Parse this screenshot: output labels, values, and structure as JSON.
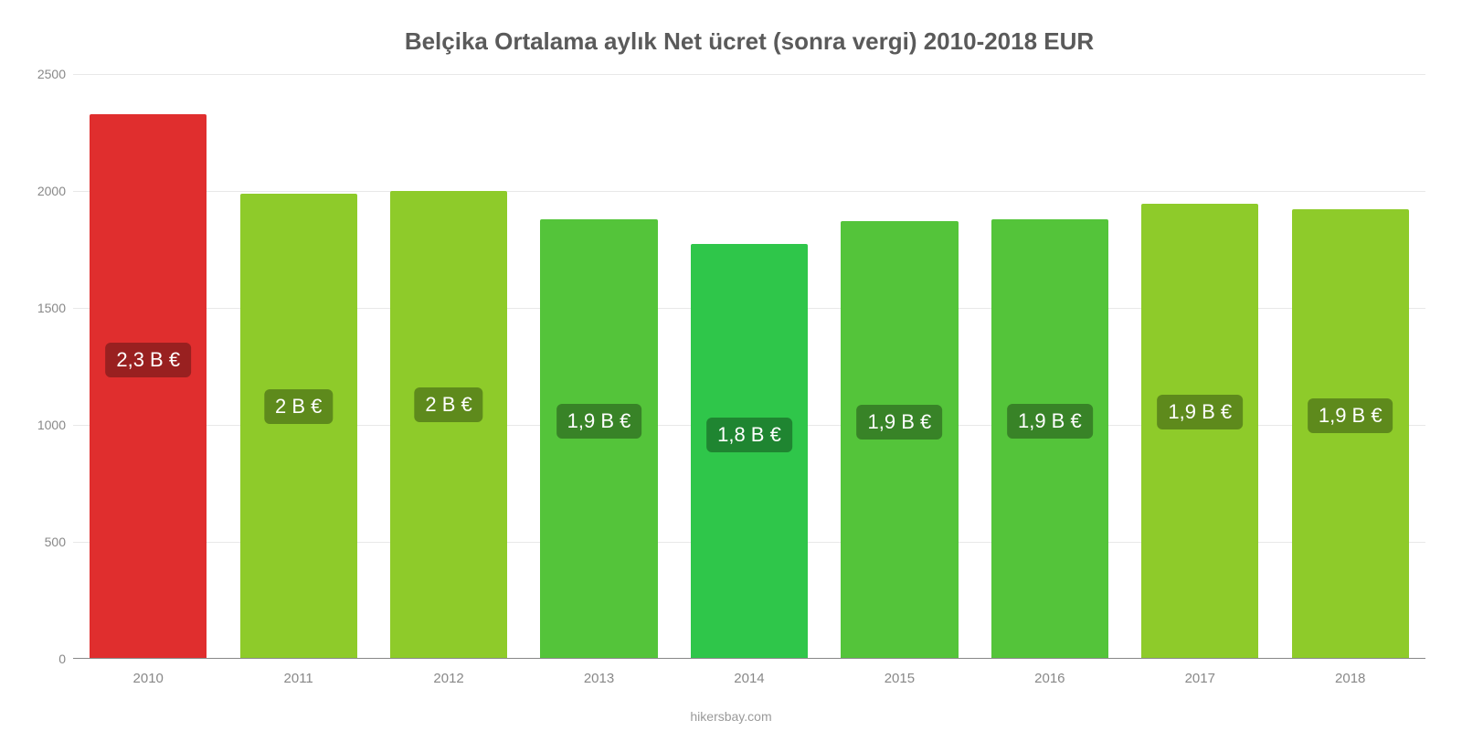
{
  "chart": {
    "type": "bar",
    "title": "Belçika Ortalama aylık Net ücret (sonra vergi) 2010-2018 EUR",
    "title_fontsize": 26,
    "title_color": "#5a5a5a",
    "background_color": "#ffffff",
    "grid_color": "#e8e8e8",
    "axis_text_color": "#888888",
    "axis_fontsize": 14,
    "ylim": [
      0,
      2500
    ],
    "ytick_step": 500,
    "yticks": [
      0,
      500,
      1000,
      1500,
      2000,
      2500
    ],
    "categories": [
      "2010",
      "2011",
      "2012",
      "2013",
      "2014",
      "2015",
      "2016",
      "2017",
      "2018"
    ],
    "values": [
      2330,
      1990,
      2000,
      1880,
      1775,
      1870,
      1880,
      1945,
      1920
    ],
    "bar_colors": [
      "#e02e2e",
      "#8ecb2a",
      "#8ecb2a",
      "#54c43a",
      "#2fc64a",
      "#54c43a",
      "#54c43a",
      "#8ecb2a",
      "#8ecb2a"
    ],
    "bar_labels": [
      "2,3 B €",
      "2 B €",
      "2 B €",
      "1,9 B €",
      "1,8 B €",
      "1,9 B €",
      "1,9 B €",
      "1,9 B €",
      "1,9 B €"
    ],
    "bar_label_bg_colors": [
      "#992020",
      "#5e8a1c",
      "#5e8a1c",
      "#388327",
      "#1f8531",
      "#388327",
      "#388327",
      "#5e8a1c",
      "#5e8a1c"
    ],
    "bar_label_fontsize": 22,
    "bar_label_text_color": "#ffffff",
    "bar_width_ratio": 0.78,
    "credit": "hikersbay.com",
    "credit_color": "#9a9a9a"
  }
}
